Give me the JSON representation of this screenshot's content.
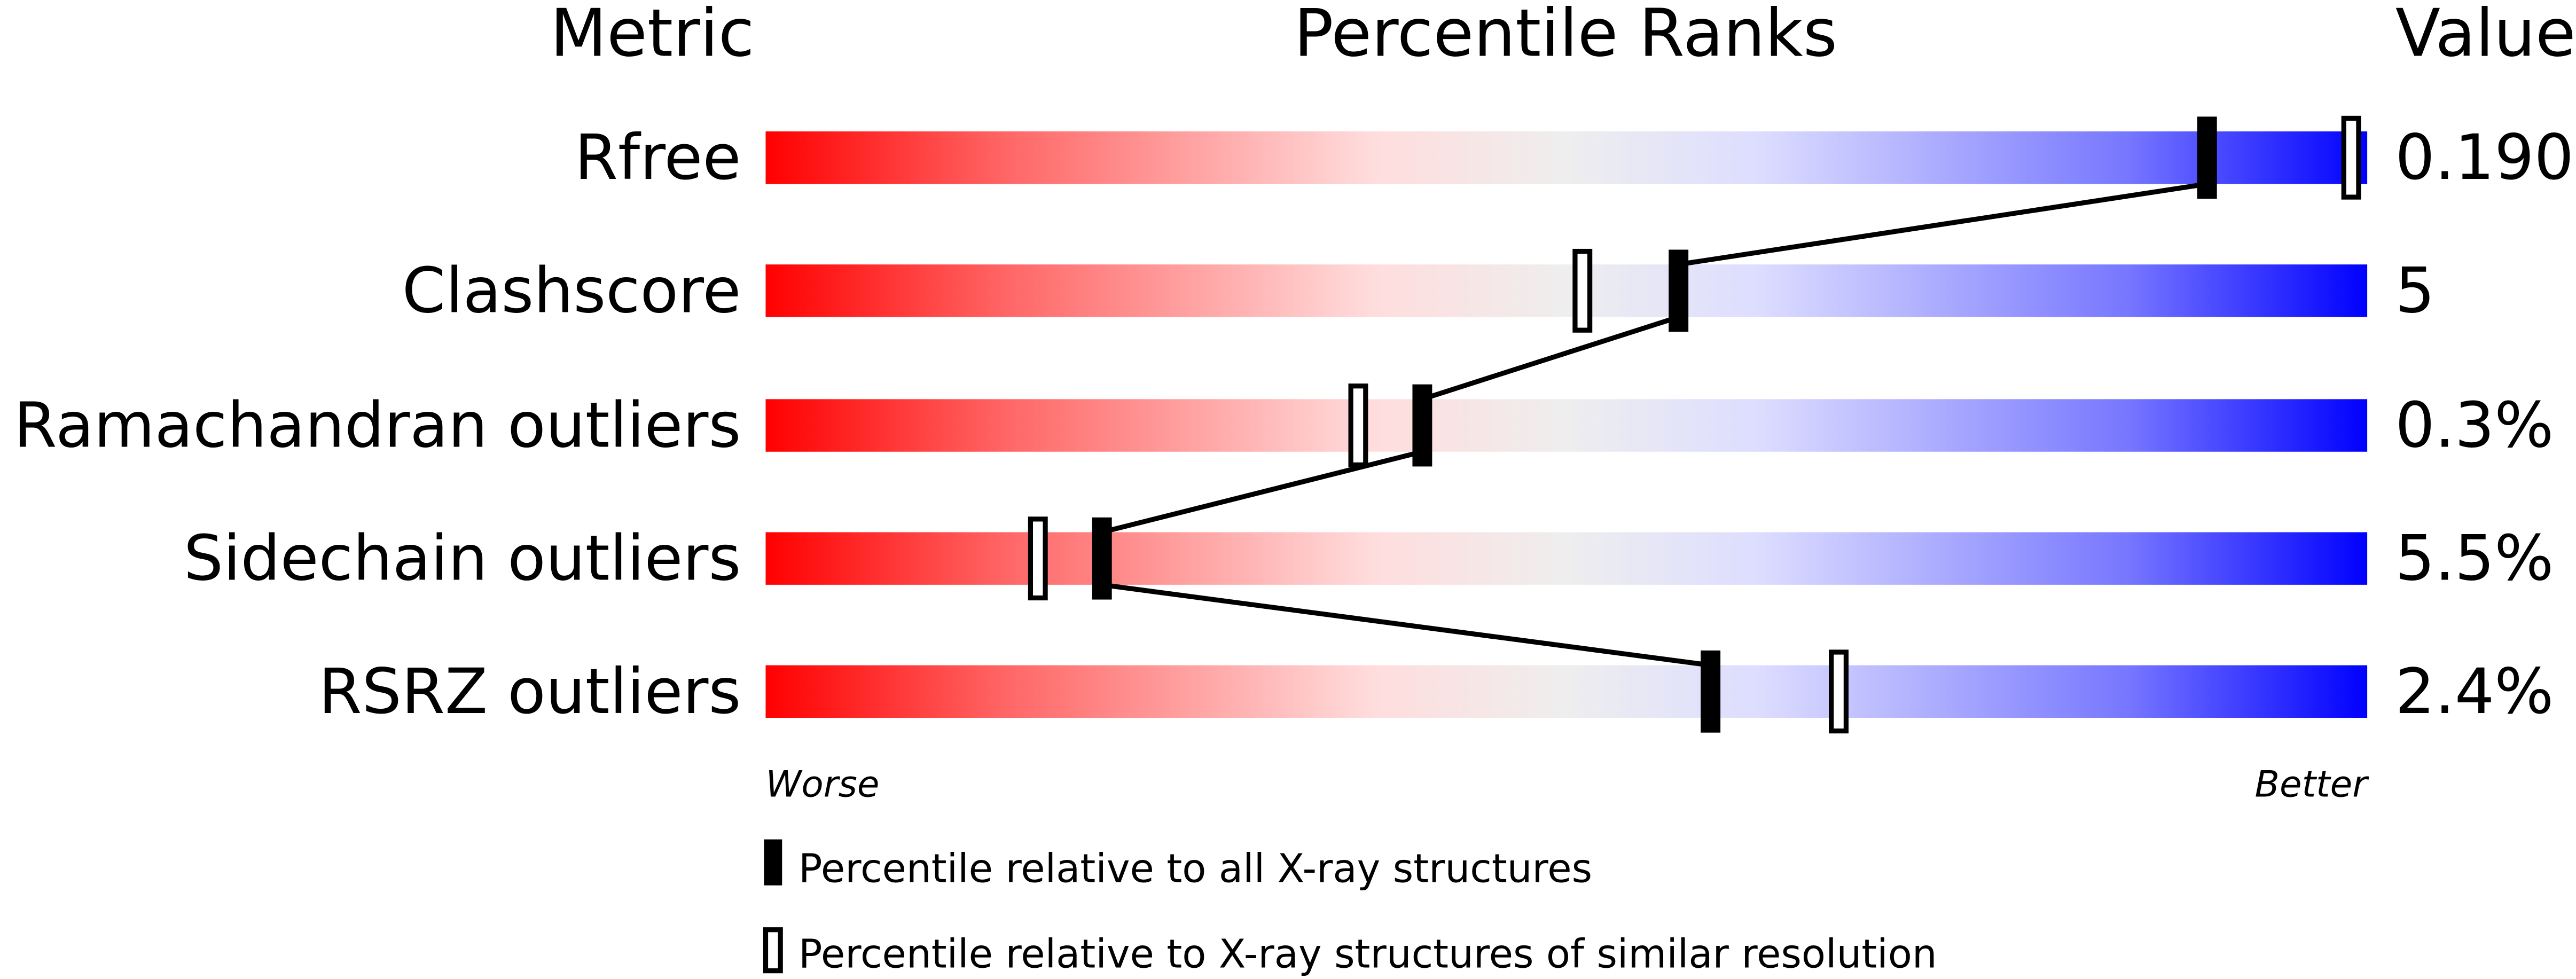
{
  "chart_data": {
    "type": "percentile-slider",
    "headers": {
      "metric": "Metric",
      "percentile": "Percentile Ranks",
      "value": "Value"
    },
    "categories": [
      "Rfree",
      "Clashscore",
      "Ramachandran outliers",
      "Sidechain outliers",
      "RSRZ outliers"
    ],
    "values": [
      "0.190",
      "5",
      "0.3%",
      "5.5%",
      "2.4%"
    ],
    "xlim": [
      0,
      100
    ],
    "axis_labels": {
      "left": "Worse",
      "right": "Better"
    },
    "series": [
      {
        "name": "Percentile relative to all X-ray structures",
        "marker": "filled",
        "values": [
          90,
          57,
          41,
          21,
          59
        ]
      },
      {
        "name": "Percentile relative to X-ray structures of similar resolution",
        "marker": "hollow",
        "values": [
          99,
          51,
          37,
          17,
          67
        ]
      }
    ],
    "gradient_colors": [
      "#ff0000",
      "#ff6666",
      "#ffdddd",
      "#eeeeee",
      "#ddddff",
      "#6666ff",
      "#0000ff"
    ],
    "connect_line": "filled markers joined by a black line"
  }
}
